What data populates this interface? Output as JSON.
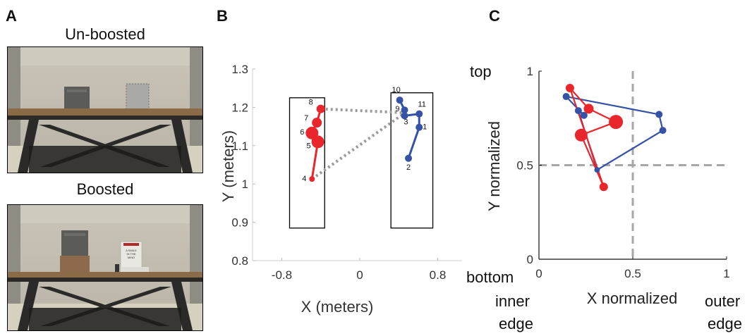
{
  "panels": {
    "a": {
      "letter": "A",
      "top_caption": "Un-boosted",
      "bottom_caption": "Boosted",
      "book_text": [
        "A SMILE",
        "IN THE",
        "MIND"
      ]
    },
    "b": {
      "letter": "B"
    },
    "c": {
      "letter": "C",
      "corner_labels": {
        "top": "top",
        "bottom": "bottom",
        "inner": [
          "inner",
          "edge"
        ],
        "outer": [
          "outer",
          "edge"
        ]
      }
    }
  },
  "colors": {
    "red": "#e8262b",
    "blue": "#3552a7",
    "dotted": "#9b9b9b",
    "dashed": "#a7a7a7"
  },
  "chart_data": [
    {
      "id": "b",
      "type": "scatter",
      "xlabel": "X (meters)",
      "ylabel": "Y (meters)",
      "xlim": [
        -1.1,
        1.05
      ],
      "ylim": [
        0.8,
        1.3
      ],
      "xticks": [
        {
          "v": -0.8,
          "label": "-0.8"
        },
        {
          "v": 0,
          "label": "0"
        },
        {
          "v": 0.8,
          "label": "0.8"
        }
      ],
      "yticks": [
        {
          "v": 0.8,
          "label": "0.8"
        },
        {
          "v": 0.9,
          "label": "0.9"
        },
        {
          "v": 1.0,
          "label": "1"
        },
        {
          "v": 1.1,
          "label": "1.1"
        },
        {
          "v": 1.2,
          "label": "1.2"
        },
        {
          "v": 1.3,
          "label": "1.3"
        }
      ],
      "rects": [
        {
          "x0": -0.72,
          "x1": -0.36,
          "y0": 0.885,
          "y1": 1.225
        },
        {
          "x0": 0.32,
          "x1": 0.75,
          "y0": 0.885,
          "y1": 1.238
        }
      ],
      "series": [
        {
          "color": "red",
          "points": [
            {
              "label": "4",
              "x": -0.49,
              "y": 1.013,
              "size": 4
            },
            {
              "label": "5",
              "x": -0.43,
              "y": 1.11,
              "size": 9
            },
            {
              "label": "6",
              "x": -0.49,
              "y": 1.133,
              "size": 9
            },
            {
              "label": "7",
              "x": -0.44,
              "y": 1.16,
              "size": 7
            },
            {
              "label": "8",
              "x": -0.4,
              "y": 1.196,
              "size": 6
            }
          ]
        },
        {
          "color": "blue",
          "points": [
            {
              "label": "2",
              "x": 0.5,
              "y": 1.067,
              "size": 5
            },
            {
              "label": "1",
              "x": 0.61,
              "y": 1.148,
              "size": 5
            },
            {
              "label": "11",
              "x": 0.61,
              "y": 1.183,
              "size": 5
            },
            {
              "label": "3",
              "x": 0.46,
              "y": 1.178,
              "size": 5
            },
            {
              "label": "9",
              "x": 0.46,
              "y": 1.193,
              "size": 5
            },
            {
              "label": "10",
              "x": 0.41,
              "y": 1.219,
              "size": 5
            }
          ]
        }
      ],
      "dotted_links": [
        {
          "x0": -0.4,
          "y0": 1.196,
          "x1": 0.46,
          "y1": 1.186
        },
        {
          "x0": -0.49,
          "y0": 1.013,
          "x1": 0.46,
          "y1": 1.185
        }
      ]
    },
    {
      "id": "c",
      "type": "scatter",
      "xlabel": "X normalized",
      "ylabel": "Y normalized",
      "xlim": [
        0,
        1
      ],
      "ylim": [
        0,
        1
      ],
      "xticks": [
        {
          "v": 0,
          "label": "0"
        },
        {
          "v": 0.5,
          "label": "0.5"
        },
        {
          "v": 1,
          "label": "1"
        }
      ],
      "yticks": [
        {
          "v": 0,
          "label": "0"
        },
        {
          "v": 0.5,
          "label": "0.5"
        },
        {
          "v": 1,
          "label": "1"
        }
      ],
      "dashed_lines": {
        "x": 0.5,
        "y": 0.5
      },
      "series": [
        {
          "color": "blue",
          "points": [
            {
              "x": 0.31,
              "y": 0.475,
              "size": 4
            },
            {
              "x": 0.66,
              "y": 0.685,
              "size": 5
            },
            {
              "x": 0.64,
              "y": 0.77,
              "size": 5
            },
            {
              "x": 0.145,
              "y": 0.865,
              "size": 5
            },
            {
              "x": 0.24,
              "y": 0.765,
              "size": 5
            },
            {
              "x": 0.21,
              "y": 0.79,
              "size": 5
            }
          ]
        },
        {
          "color": "red",
          "points": [
            {
              "x": 0.345,
              "y": 0.385,
              "size": 6
            },
            {
              "x": 0.225,
              "y": 0.66,
              "size": 9
            },
            {
              "x": 0.41,
              "y": 0.73,
              "size": 10
            },
            {
              "x": 0.265,
              "y": 0.8,
              "size": 7
            },
            {
              "x": 0.165,
              "y": 0.91,
              "size": 6
            }
          ]
        }
      ]
    }
  ]
}
